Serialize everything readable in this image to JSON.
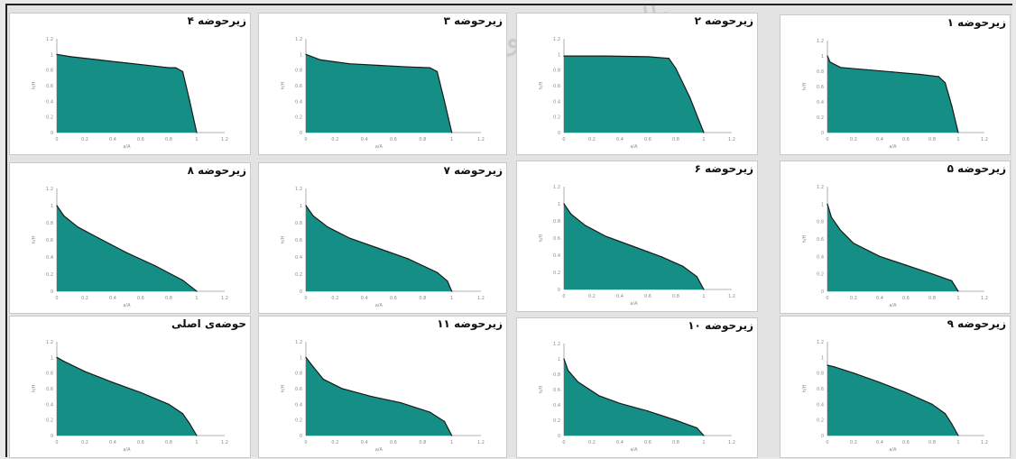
{
  "figure": {
    "watermark": "پرتال جامع علوم انسانی"
  },
  "colors": {
    "fill": "#158f86",
    "line": "#1a1a1a",
    "axis": "#9a9a9a",
    "tick_text": "#8a8a8a",
    "panel_bg": "#ffffff"
  },
  "chart_data": [
    {
      "type": "area",
      "title": "زیرحوضه ۴",
      "xlabel": "a/A",
      "ylabel": "h/H",
      "xlim": [
        0,
        1.2
      ],
      "ylim": [
        0,
        1.2
      ],
      "xticks": [
        "0",
        "0.2",
        "0.4",
        "0.6",
        "0.8",
        "1",
        "1.2"
      ],
      "yticks": [
        "0",
        "0.2",
        "0.4",
        "0.6",
        "0.8",
        "1",
        "1.2"
      ],
      "x": [
        0,
        0.1,
        0.3,
        0.5,
        0.7,
        0.8,
        0.85,
        0.9,
        0.95,
        1.0
      ],
      "y": [
        1,
        0.97,
        0.93,
        0.89,
        0.85,
        0.83,
        0.83,
        0.78,
        0.4,
        0
      ]
    },
    {
      "type": "area",
      "title": "زیرحوضه ۳",
      "xlabel": "a/A",
      "ylabel": "h/H",
      "xlim": [
        0,
        1.2
      ],
      "ylim": [
        0,
        1.2
      ],
      "xticks": [
        "0",
        "0.2",
        "0.4",
        "0.6",
        "0.8",
        "1",
        "1.2"
      ],
      "yticks": [
        "0",
        "0.2",
        "0.4",
        "0.6",
        "0.8",
        "1",
        "1.2"
      ],
      "x": [
        0,
        0.1,
        0.3,
        0.5,
        0.7,
        0.85,
        0.9,
        0.95,
        1.0
      ],
      "y": [
        1,
        0.93,
        0.88,
        0.86,
        0.84,
        0.83,
        0.78,
        0.4,
        0
      ]
    },
    {
      "type": "area",
      "title": "زیرحوضه ۲",
      "xlabel": "a/A",
      "ylabel": "h/H",
      "xlim": [
        0,
        1.2
      ],
      "ylim": [
        0,
        1.2
      ],
      "xticks": [
        "0",
        "0.2",
        "0.4",
        "0.6",
        "0.8",
        "1",
        "1.2"
      ],
      "yticks": [
        "0",
        "0.2",
        "0.4",
        "0.6",
        "0.8",
        "1",
        "1.2"
      ],
      "x": [
        0,
        0.3,
        0.6,
        0.75,
        0.8,
        0.9,
        1.0
      ],
      "y": [
        0.98,
        0.98,
        0.97,
        0.95,
        0.82,
        0.45,
        0
      ]
    },
    {
      "type": "area",
      "title": "زیرحوضه ۱",
      "xlabel": "a/A",
      "ylabel": "h/H",
      "xlim": [
        0,
        1.2
      ],
      "ylim": [
        0,
        1.2
      ],
      "xticks": [
        "0",
        "0.2",
        "0.4",
        "0.6",
        "0.8",
        "1",
        "1.2"
      ],
      "yticks": [
        "0",
        "0.2",
        "0.4",
        "0.6",
        "0.8",
        "1",
        "1.2"
      ],
      "x": [
        0,
        0.02,
        0.1,
        0.3,
        0.5,
        0.7,
        0.85,
        0.9,
        0.95,
        1.0
      ],
      "y": [
        1,
        0.92,
        0.85,
        0.82,
        0.79,
        0.76,
        0.73,
        0.65,
        0.35,
        0
      ]
    },
    {
      "type": "area",
      "title": "زیرحوضه ۸",
      "xlabel": "a/A",
      "ylabel": "h/H",
      "xlim": [
        0,
        1.2
      ],
      "ylim": [
        0,
        1.2
      ],
      "xticks": [
        "0",
        "0.2",
        "0.4",
        "0.6",
        "0.8",
        "1",
        "1.2"
      ],
      "yticks": [
        "0",
        "0.2",
        "0.4",
        "0.6",
        "0.8",
        "1",
        "1.2"
      ],
      "x": [
        0,
        0.05,
        0.15,
        0.3,
        0.5,
        0.7,
        0.9,
        1.0
      ],
      "y": [
        1,
        0.88,
        0.75,
        0.62,
        0.45,
        0.3,
        0.13,
        0
      ]
    },
    {
      "type": "area",
      "title": "زیرحوضه ۷",
      "xlabel": "a/A",
      "ylabel": "h/H",
      "xlim": [
        0,
        1.2
      ],
      "ylim": [
        0,
        1.2
      ],
      "xticks": [
        "0",
        "0.2",
        "0.4",
        "0.6",
        "0.8",
        "1",
        "1.2"
      ],
      "yticks": [
        "0",
        "0.2",
        "0.4",
        "0.6",
        "0.8",
        "1",
        "1.2"
      ],
      "x": [
        0,
        0.05,
        0.15,
        0.3,
        0.5,
        0.7,
        0.9,
        0.97,
        1.0
      ],
      "y": [
        1,
        0.88,
        0.75,
        0.62,
        0.5,
        0.38,
        0.22,
        0.12,
        0
      ]
    },
    {
      "type": "area",
      "title": "زیرحوضه ۶",
      "xlabel": "a/A",
      "ylabel": "h/H",
      "xlim": [
        0,
        1.2
      ],
      "ylim": [
        0,
        1.2
      ],
      "xticks": [
        "0",
        "0.2",
        "0.4",
        "0.6",
        "0.8",
        "1",
        "1.2"
      ],
      "yticks": [
        "0",
        "0.2",
        "0.4",
        "0.6",
        "0.8",
        "1",
        "1.2"
      ],
      "x": [
        0,
        0.05,
        0.15,
        0.3,
        0.5,
        0.7,
        0.85,
        0.95,
        1.0
      ],
      "y": [
        1,
        0.88,
        0.75,
        0.62,
        0.5,
        0.38,
        0.27,
        0.15,
        0
      ]
    },
    {
      "type": "area",
      "title": "زیرحوضه ۵",
      "xlabel": "a/A",
      "ylabel": "h/H",
      "xlim": [
        0,
        1.2
      ],
      "ylim": [
        0,
        1.2
      ],
      "xticks": [
        "0",
        "0.2",
        "0.4",
        "0.6",
        "0.8",
        "1",
        "1.2"
      ],
      "yticks": [
        "0",
        "0.2",
        "0.4",
        "0.6",
        "0.8",
        "1",
        "1.2"
      ],
      "x": [
        0,
        0.03,
        0.1,
        0.2,
        0.4,
        0.6,
        0.8,
        0.95,
        1.0
      ],
      "y": [
        1,
        0.85,
        0.7,
        0.55,
        0.4,
        0.3,
        0.2,
        0.12,
        0
      ]
    },
    {
      "type": "area",
      "title": "حوضه‌ی اصلی",
      "xlabel": "a/A",
      "ylabel": "h/H",
      "xlim": [
        0,
        1.2
      ],
      "ylim": [
        0,
        1.2
      ],
      "xticks": [
        "0",
        "0.2",
        "0.4",
        "0.6",
        "0.8",
        "1",
        "1.2"
      ],
      "yticks": [
        "0",
        "0.2",
        "0.4",
        "0.6",
        "0.8",
        "1",
        "1.2"
      ],
      "x": [
        0,
        0.05,
        0.2,
        0.4,
        0.6,
        0.8,
        0.9,
        0.95,
        1.0
      ],
      "y": [
        1,
        0.95,
        0.82,
        0.68,
        0.55,
        0.4,
        0.28,
        0.15,
        0
      ]
    },
    {
      "type": "area",
      "title": "زیرحوضه ۱۱",
      "xlabel": "a/A",
      "ylabel": "h/H",
      "xlim": [
        0,
        1.2
      ],
      "ylim": [
        0,
        1.2
      ],
      "xticks": [
        "0",
        "0.2",
        "0.4",
        "0.6",
        "0.8",
        "1",
        "1.2"
      ],
      "yticks": [
        "0",
        "0.2",
        "0.4",
        "0.6",
        "0.8",
        "1",
        "1.2"
      ],
      "x": [
        0,
        0.05,
        0.12,
        0.25,
        0.45,
        0.65,
        0.85,
        0.95,
        1.0
      ],
      "y": [
        1,
        0.88,
        0.72,
        0.6,
        0.5,
        0.42,
        0.3,
        0.18,
        0
      ]
    },
    {
      "type": "area",
      "title": "زیرحوضه ۱۰",
      "xlabel": "a/A",
      "ylabel": "h/H",
      "xlim": [
        0,
        1.2
      ],
      "ylim": [
        0,
        1.2
      ],
      "xticks": [
        "0",
        "0.2",
        "0.4",
        "0.6",
        "0.8",
        "1",
        "1.2"
      ],
      "yticks": [
        "0",
        "0.2",
        "0.4",
        "0.6",
        "0.8",
        "1",
        "1.2"
      ],
      "x": [
        0,
        0.03,
        0.1,
        0.25,
        0.4,
        0.6,
        0.8,
        0.95,
        1.0
      ],
      "y": [
        1,
        0.85,
        0.7,
        0.52,
        0.42,
        0.32,
        0.2,
        0.1,
        0
      ]
    },
    {
      "type": "area",
      "title": "زیرحوضه ۹",
      "xlabel": "a/A",
      "ylabel": "h/H",
      "xlim": [
        0,
        1.2
      ],
      "ylim": [
        0,
        1.2
      ],
      "xticks": [
        "0",
        "0.2",
        "0.4",
        "0.6",
        "0.8",
        "1",
        "1.2"
      ],
      "yticks": [
        "0",
        "0.2",
        "0.4",
        "0.6",
        "0.8",
        "1",
        "1.2"
      ],
      "x": [
        0,
        0.05,
        0.2,
        0.4,
        0.6,
        0.8,
        0.9,
        0.95,
        1.0
      ],
      "y": [
        0.9,
        0.88,
        0.8,
        0.68,
        0.55,
        0.4,
        0.28,
        0.15,
        0
      ]
    }
  ]
}
